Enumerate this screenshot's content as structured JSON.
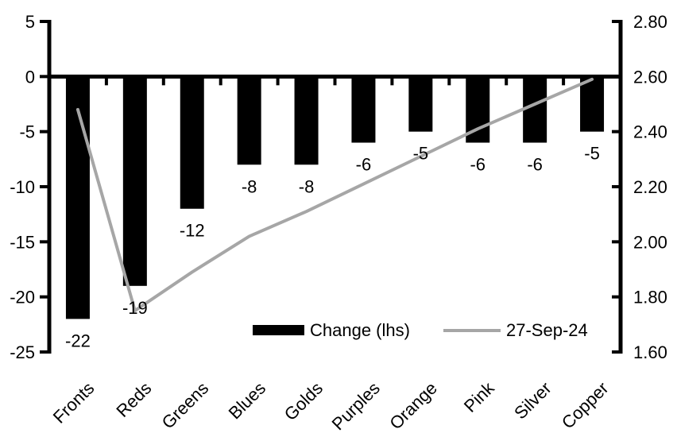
{
  "chart_data": {
    "type": "combo-bar-line",
    "categories": [
      "Fronts",
      "Reds",
      "Greens",
      "Blues",
      "Golds",
      "Purples",
      "Orange",
      "Pink",
      "Silver",
      "Copper"
    ],
    "series": [
      {
        "name": "Change (lhs)",
        "type": "bar",
        "axis": "left",
        "color": "#000000",
        "values": [
          -22,
          -19,
          -12,
          -8,
          -8,
          -6,
          -5,
          -6,
          -6,
          -5
        ],
        "data_labels": [
          "-22",
          "-19",
          "-12",
          "-8",
          "-8",
          "-6",
          "-5",
          "-6",
          "-6",
          "-5"
        ]
      },
      {
        "name": "27-Sep-24",
        "type": "line",
        "axis": "right",
        "color": "#a6a6a6",
        "values": [
          2.48,
          1.75,
          1.89,
          2.02,
          2.11,
          2.21,
          2.31,
          2.41,
          2.5,
          2.59
        ]
      }
    ],
    "left_axis": {
      "range": [
        -25,
        5
      ],
      "tick_step": 5,
      "ticks": [
        "5",
        "0",
        "-5",
        "-10",
        "-15",
        "-20",
        "-25"
      ]
    },
    "right_axis": {
      "range": [
        1.6,
        2.8
      ],
      "tick_step": 0.2,
      "ticks": [
        "2.80",
        "2.60",
        "2.40",
        "2.20",
        "2.00",
        "1.80",
        "1.60"
      ]
    },
    "grid": false,
    "data_labels_visible": true,
    "legend_position": "bottom-center-inside",
    "axis_color": "#000000",
    "background_color": "#ffffff"
  }
}
